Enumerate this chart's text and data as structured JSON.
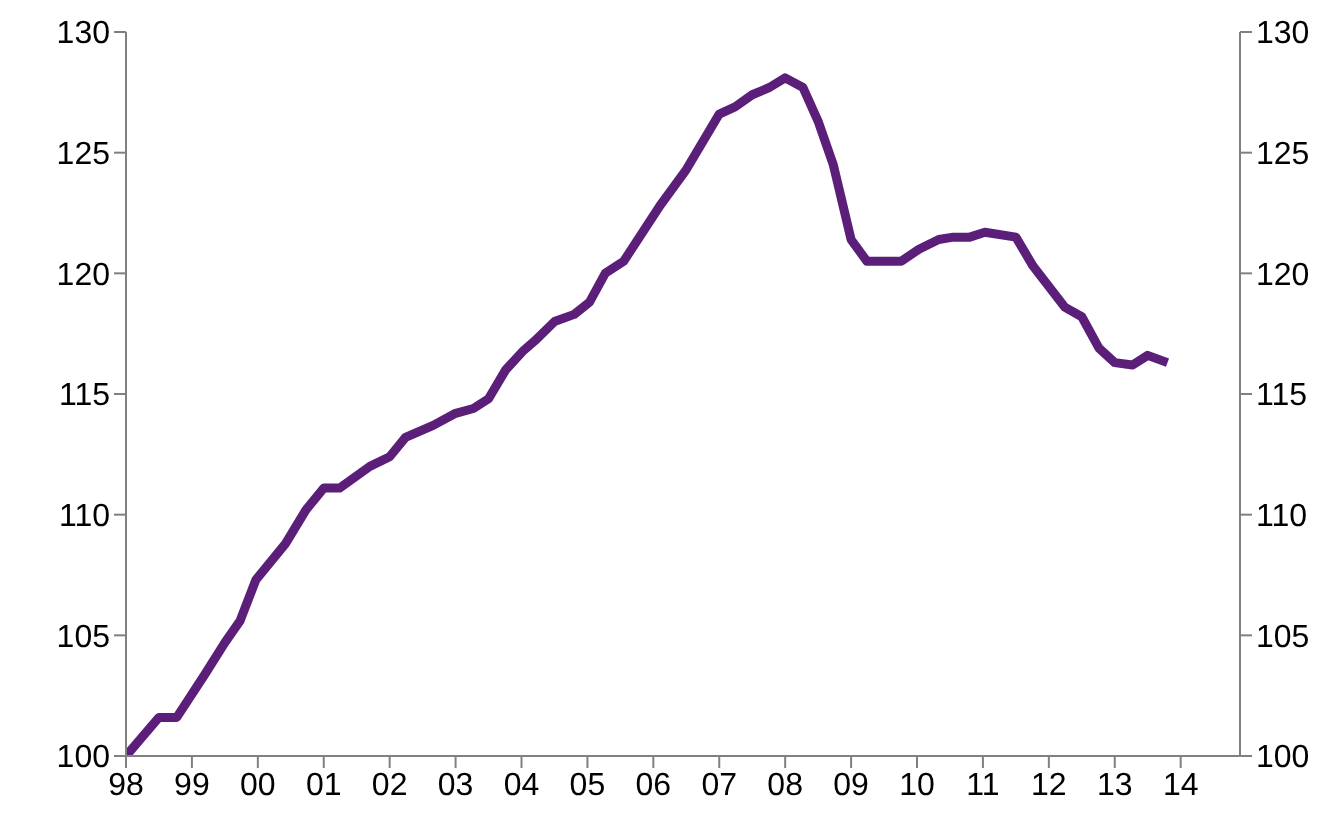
{
  "chart_data": {
    "type": "line",
    "x": [
      1998.0,
      1998.5,
      1998.77,
      1999.2,
      1999.5,
      1999.73,
      1999.97,
      2000.42,
      2000.73,
      2001.0,
      2001.24,
      2001.7,
      2002.0,
      2002.24,
      2002.66,
      2003.0,
      2003.27,
      2003.5,
      2003.76,
      2004.03,
      2004.2,
      2004.5,
      2004.8,
      2005.03,
      2005.27,
      2005.55,
      2006.1,
      2006.5,
      2007.0,
      2007.24,
      2007.5,
      2007.76,
      2008.0,
      2008.27,
      2008.5,
      2008.73,
      2009.0,
      2009.24,
      2009.5,
      2009.76,
      2010.03,
      2010.33,
      2010.55,
      2010.8,
      2011.03,
      2011.5,
      2011.76,
      2012.24,
      2012.5,
      2012.76,
      2013.0,
      2013.27,
      2013.5,
      2013.8
    ],
    "series": [
      {
        "color": "#5b1f7a",
        "values": [
          100,
          101.6,
          101.6,
          103.4,
          104.7,
          105.6,
          107.3,
          108.8,
          110.2,
          111.1,
          111.1,
          112.0,
          112.4,
          113.2,
          113.7,
          114.2,
          114.4,
          114.8,
          116.0,
          116.8,
          117.2,
          118.0,
          118.3,
          118.8,
          120.0,
          120.5,
          122.8,
          124.3,
          126.6,
          126.9,
          127.4,
          127.7,
          128.1,
          127.7,
          126.3,
          124.5,
          121.4,
          120.5,
          120.5,
          120.5,
          121.0,
          121.4,
          121.5,
          121.5,
          121.7,
          121.5,
          120.3,
          118.6,
          118.2,
          116.9,
          116.3,
          116.2,
          116.6,
          116.3
        ]
      }
    ],
    "xlim": [
      1998,
      2014.9
    ],
    "xticks": [
      {
        "value": 1998,
        "label": "98"
      },
      {
        "value": 1999,
        "label": "99"
      },
      {
        "value": 2000,
        "label": "00"
      },
      {
        "value": 2001,
        "label": "01"
      },
      {
        "value": 2002,
        "label": "02"
      },
      {
        "value": 2003,
        "label": "03"
      },
      {
        "value": 2004,
        "label": "04"
      },
      {
        "value": 2005,
        "label": "05"
      },
      {
        "value": 2006,
        "label": "06"
      },
      {
        "value": 2007,
        "label": "07"
      },
      {
        "value": 2008,
        "label": "08"
      },
      {
        "value": 2009,
        "label": "09"
      },
      {
        "value": 2010,
        "label": "10"
      },
      {
        "value": 2011,
        "label": "11"
      },
      {
        "value": 2012,
        "label": "12"
      },
      {
        "value": 2013,
        "label": "13"
      },
      {
        "value": 2014,
        "label": "14"
      }
    ],
    "ylim": [
      100,
      130
    ],
    "yticks": [
      100,
      105,
      110,
      115,
      120,
      125,
      130
    ],
    "y2lim": [
      100,
      130
    ],
    "y2ticks": [
      100,
      105,
      110,
      115,
      120,
      125,
      130
    ],
    "grid": false,
    "legend": false,
    "marker": "none",
    "line_style": "solid"
  }
}
